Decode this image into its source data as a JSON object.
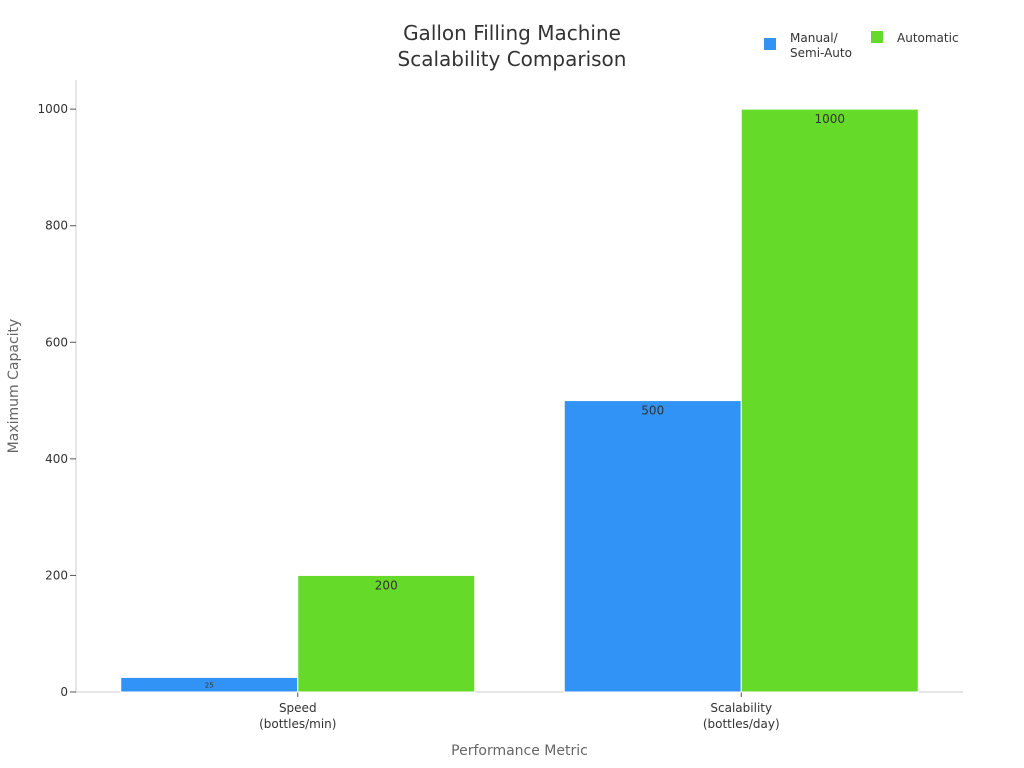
{
  "chart_data": {
    "type": "bar",
    "title": [
      "Gallon Filling Machine",
      "Scalability Comparison"
    ],
    "xlabel": "Performance Metric",
    "ylabel": "Maximum Capacity",
    "categories": [
      [
        "Speed",
        "(bottles/min)"
      ],
      [
        "Scalability",
        "(bottles/day)"
      ]
    ],
    "series": [
      {
        "name": [
          "Manual/",
          "Semi-Auto"
        ],
        "values": [
          25,
          500
        ],
        "color": "#3193F5"
      },
      {
        "name": [
          "Automatic"
        ],
        "values": [
          200,
          1000
        ],
        "color": "#66DA28"
      }
    ],
    "ylim": [
      0,
      1050
    ],
    "yticks": [
      0,
      200,
      400,
      600,
      800,
      1000
    ],
    "grid": false,
    "legend": "top-right"
  }
}
